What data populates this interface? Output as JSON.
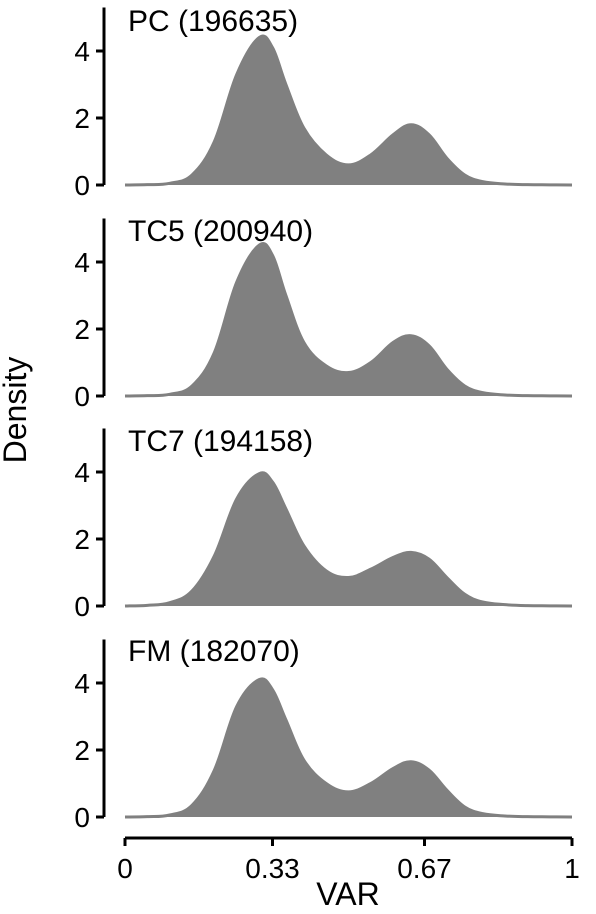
{
  "chart_data": {
    "type": "area",
    "xlabel": "VAR",
    "ylabel": "Density",
    "xlim": [
      0,
      1
    ],
    "ylim": [
      0,
      5.3
    ],
    "x_ticks": [
      {
        "value": 0,
        "label": "0"
      },
      {
        "value": 0.33,
        "label": "0.33"
      },
      {
        "value": 0.67,
        "label": "0.67"
      },
      {
        "value": 1,
        "label": "1"
      }
    ],
    "y_ticks": [
      {
        "value": 0,
        "label": "0"
      },
      {
        "value": 2,
        "label": "2"
      },
      {
        "value": 4,
        "label": "4"
      }
    ],
    "fill_color": "#808080",
    "panels": [
      {
        "title": "PC (196635)",
        "x": [
          0,
          0.05,
          0.1,
          0.15,
          0.2,
          0.25,
          0.3,
          0.33,
          0.36,
          0.4,
          0.45,
          0.5,
          0.55,
          0.6,
          0.64,
          0.68,
          0.72,
          0.76,
          0.8,
          0.85,
          0.9,
          0.95,
          1
        ],
        "y": [
          0,
          0.01,
          0.05,
          0.3,
          1.3,
          3.3,
          4.4,
          4.1,
          3.0,
          1.7,
          0.9,
          0.6,
          0.9,
          1.5,
          1.8,
          1.5,
          0.8,
          0.3,
          0.1,
          0.03,
          0.01,
          0.005,
          0
        ]
      },
      {
        "title": "TC5 (200940)",
        "x": [
          0,
          0.05,
          0.1,
          0.15,
          0.2,
          0.25,
          0.3,
          0.33,
          0.36,
          0.4,
          0.45,
          0.5,
          0.55,
          0.6,
          0.64,
          0.68,
          0.72,
          0.76,
          0.8,
          0.85,
          0.9,
          0.95,
          1
        ],
        "y": [
          0,
          0.01,
          0.05,
          0.3,
          1.3,
          3.4,
          4.5,
          4.2,
          3.0,
          1.6,
          0.9,
          0.7,
          1.0,
          1.6,
          1.8,
          1.5,
          0.8,
          0.3,
          0.1,
          0.03,
          0.01,
          0.005,
          0
        ]
      },
      {
        "title": "TC7 (194158)",
        "x": [
          0,
          0.05,
          0.1,
          0.15,
          0.2,
          0.25,
          0.3,
          0.33,
          0.36,
          0.4,
          0.45,
          0.5,
          0.55,
          0.6,
          0.64,
          0.68,
          0.72,
          0.76,
          0.8,
          0.85,
          0.9,
          0.95,
          1
        ],
        "y": [
          0,
          0.02,
          0.1,
          0.45,
          1.5,
          3.2,
          3.95,
          3.7,
          2.9,
          1.8,
          1.05,
          0.85,
          1.1,
          1.45,
          1.6,
          1.4,
          0.85,
          0.35,
          0.12,
          0.04,
          0.01,
          0.005,
          0
        ]
      },
      {
        "title": "FM (182070)",
        "x": [
          0,
          0.05,
          0.1,
          0.15,
          0.2,
          0.25,
          0.3,
          0.33,
          0.36,
          0.4,
          0.45,
          0.5,
          0.55,
          0.6,
          0.64,
          0.68,
          0.72,
          0.76,
          0.8,
          0.85,
          0.9,
          0.95,
          1
        ],
        "y": [
          0,
          0.01,
          0.06,
          0.35,
          1.4,
          3.3,
          4.1,
          3.8,
          2.9,
          1.7,
          1.0,
          0.75,
          1.0,
          1.45,
          1.65,
          1.4,
          0.8,
          0.3,
          0.1,
          0.03,
          0.01,
          0.005,
          0
        ]
      }
    ]
  }
}
